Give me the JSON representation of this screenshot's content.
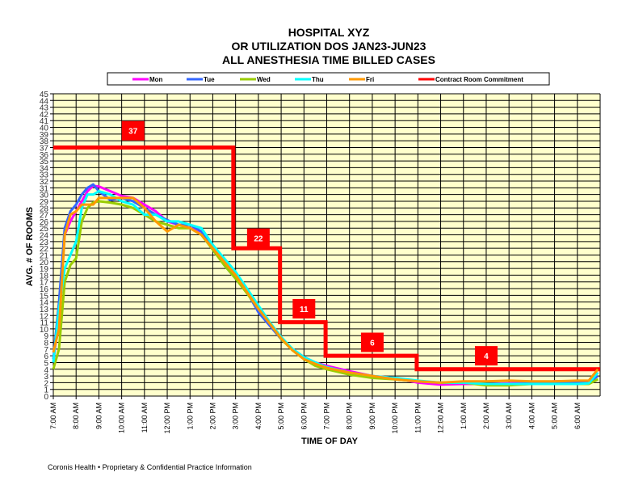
{
  "chart_data": {
    "type": "line",
    "title": [
      "HOSPITAL XYZ",
      "OR UTILIZATION DOS JAN23-JUN23",
      "ALL ANESTHESIA TIME BILLED CASES"
    ],
    "xlabel": "TIME OF DAY",
    "ylabel": "AVG. # OF ROOMS",
    "ylim": [
      0,
      45
    ],
    "xlim_hours_after_7am": [
      0,
      24
    ],
    "grid": true,
    "legend_placement": "top",
    "x_tick_labels": [
      "7:00 AM",
      "8:00 AM",
      "9:00 AM",
      "10:00 AM",
      "11:00 AM",
      "12:00 PM",
      "1:00 PM",
      "2:00 PM",
      "3:00 PM",
      "4:00 PM",
      "5:00 PM",
      "6:00 PM",
      "7:00 PM",
      "8:00 PM",
      "9:00 PM",
      "10:00 PM",
      "11:00 PM",
      "12:00 AM",
      "1:00 AM",
      "2:00 AM",
      "3:00 AM",
      "4:00 AM",
      "5:00 AM",
      "6:00 AM"
    ],
    "x": [
      0,
      0.25,
      0.5,
      0.75,
      1,
      1.25,
      1.5,
      1.75,
      2,
      2.5,
      3,
      3.5,
      4,
      4.5,
      5,
      5.5,
      6,
      6.5,
      7,
      7.5,
      8,
      8.5,
      9,
      9.5,
      10,
      10.5,
      11,
      11.5,
      12,
      13,
      14,
      15,
      16,
      17,
      18,
      19,
      20,
      21,
      22,
      23,
      23.5,
      23.9
    ],
    "series": [
      {
        "name": "Mon",
        "color": "#ff00ff",
        "values": [
          5,
          12,
          24,
          26,
          27.5,
          29,
          30.5,
          31.3,
          31.2,
          30.5,
          29.8,
          29.5,
          28.5,
          27.5,
          26,
          25.5,
          25,
          24.5,
          22.5,
          20,
          18,
          15.5,
          12.5,
          10.5,
          8.5,
          7,
          5.8,
          5,
          4.5,
          3.7,
          3,
          2.7,
          2,
          1.7,
          1.8,
          1.8,
          1.9,
          2,
          2.2,
          2.2,
          2.3,
          3.5
        ]
      },
      {
        "name": "Tue",
        "color": "#3366ff",
        "values": [
          5.5,
          14,
          25,
          27.5,
          28.5,
          30,
          31,
          31.5,
          30.5,
          29.2,
          29.5,
          29,
          28,
          27,
          26.2,
          25.5,
          25.5,
          24.5,
          22,
          19.5,
          17.5,
          15.5,
          12.5,
          10.5,
          8.5,
          7,
          5.8,
          5,
          4.3,
          3.5,
          3,
          2.5,
          2.2,
          2,
          2,
          1.8,
          1.8,
          1.9,
          2,
          2,
          2,
          3
        ]
      },
      {
        "name": "Wed",
        "color": "#99cc00",
        "values": [
          4,
          7,
          17,
          19.5,
          20.5,
          26,
          28,
          28.8,
          29,
          28.8,
          28.5,
          28,
          27,
          26,
          25.5,
          25,
          25,
          24,
          21.8,
          19.5,
          17.5,
          15.3,
          13,
          10.8,
          8.5,
          6.8,
          5.5,
          4.5,
          4,
          3.2,
          2.7,
          2.5,
          2.2,
          2,
          2,
          1.6,
          1.6,
          1.8,
          1.8,
          1.8,
          1.8,
          2.5
        ]
      },
      {
        "name": "Thu",
        "color": "#00ffff",
        "values": [
          5,
          13,
          19,
          21,
          23,
          28,
          30,
          30,
          30.5,
          30,
          29,
          28.5,
          27,
          27,
          26,
          26,
          25.5,
          25,
          22.5,
          20.5,
          18.5,
          16,
          13.5,
          11,
          8.8,
          7,
          5.8,
          5,
          4.3,
          3.5,
          3,
          2.7,
          2.3,
          2,
          2,
          1.8,
          1.8,
          1.8,
          1.8,
          1.8,
          1.9,
          3.5
        ]
      },
      {
        "name": "Fri",
        "color": "#ff9900",
        "values": [
          6.5,
          10,
          24,
          27,
          27.5,
          28.5,
          28.5,
          28.5,
          29.5,
          29.5,
          29.5,
          29.5,
          28,
          26,
          24.5,
          25.5,
          25,
          24,
          22,
          20,
          18,
          15.5,
          13,
          10.8,
          8.6,
          6.8,
          5.5,
          4.8,
          4.2,
          3.5,
          3,
          2.5,
          2.2,
          2,
          2.2,
          2.2,
          2.3,
          2.2,
          2.2,
          2.3,
          2.3,
          4
        ]
      }
    ],
    "contract": {
      "name": "Contract Room Commitment",
      "color": "#ff0000",
      "steps": [
        [
          0,
          37
        ],
        [
          7.9,
          37
        ],
        [
          7.9,
          22
        ],
        [
          9.95,
          22
        ],
        [
          9.95,
          11
        ],
        [
          11.95,
          11
        ],
        [
          11.95,
          6
        ],
        [
          15.95,
          6
        ],
        [
          15.95,
          4
        ],
        [
          24,
          4
        ]
      ],
      "labels": [
        {
          "text": "37",
          "x": 3.5,
          "y": 39.5
        },
        {
          "text": "22",
          "x": 9,
          "y": 23.5
        },
        {
          "text": "11",
          "x": 11,
          "y": 13
        },
        {
          "text": "6",
          "x": 14,
          "y": 8
        },
        {
          "text": "4",
          "x": 19,
          "y": 6
        }
      ]
    }
  },
  "footer": "Coronis Health • Proprietary & Confidential Practice Information"
}
